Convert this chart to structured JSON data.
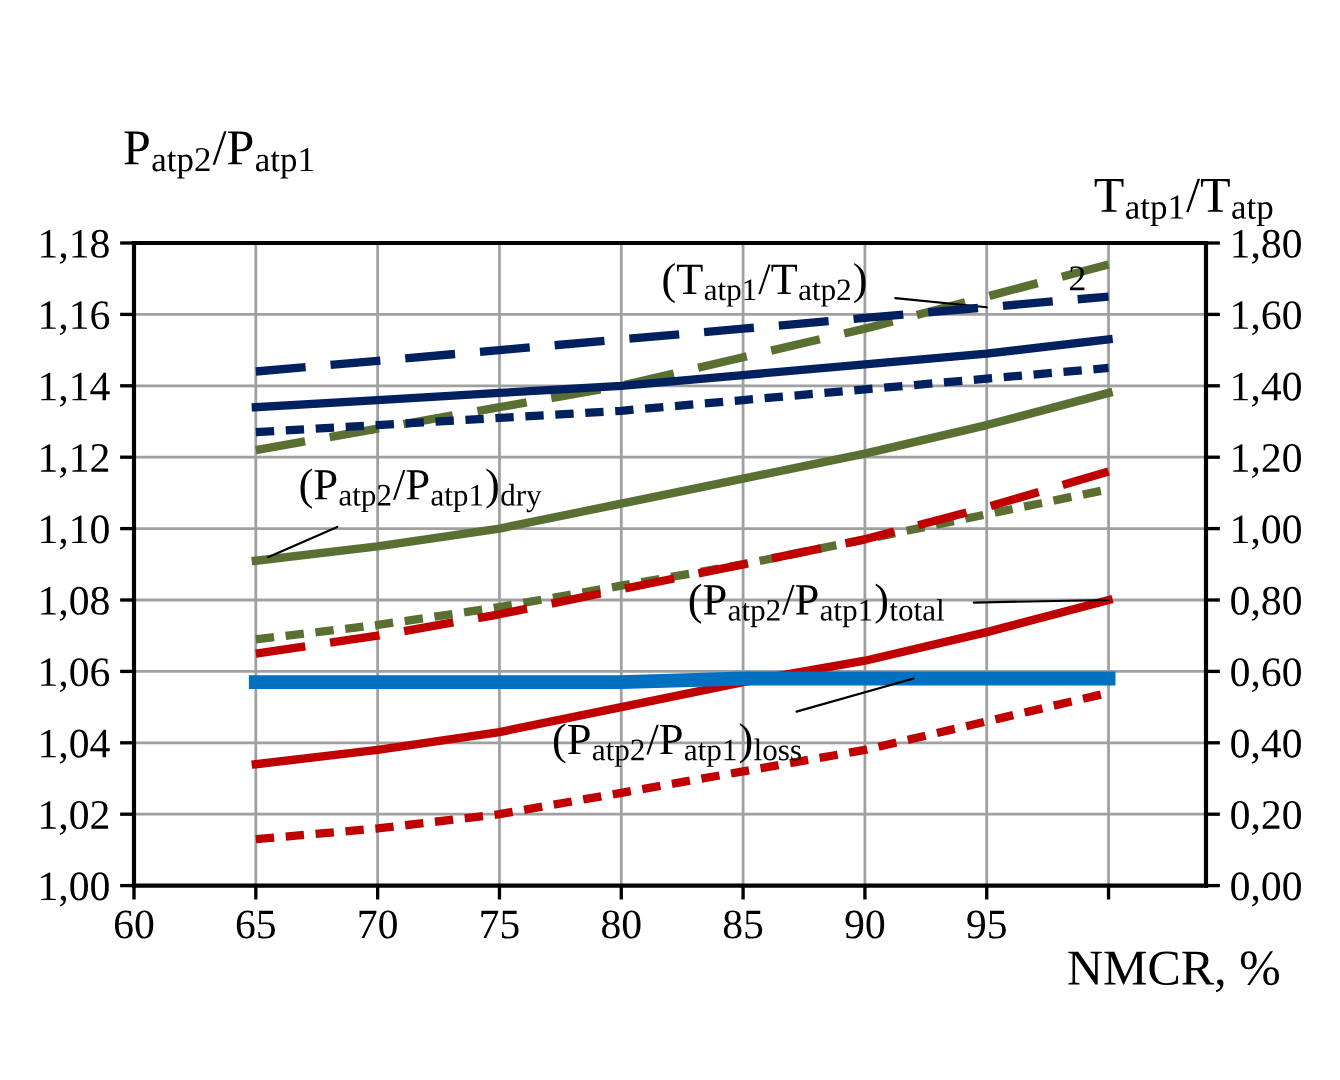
{
  "chart_data": {
    "type": "line",
    "xlabel": "NMCR, %",
    "ylabel": "P$_{atp2}$/P$_{atp1}$",
    "y2label": "T$_{atp1}$/T$_{atp}$",
    "x": [
      65,
      70,
      75,
      80,
      85,
      90,
      95,
      100
    ],
    "series": [
      {
        "color": "#002060",
        "line_style": "dashed",
        "axis": "y2",
        "values": [
          1.44,
          1.47,
          1.5,
          1.53,
          1.56,
          1.59,
          1.62,
          1.65
        ]
      },
      {
        "color": "#002060",
        "line_style": "solid",
        "axis": "y2",
        "values": [
          1.34,
          1.36,
          1.38,
          1.4,
          1.43,
          1.46,
          1.49,
          1.53
        ]
      },
      {
        "color": "#002060",
        "line_style": "dotted",
        "axis": "y2",
        "values": [
          1.27,
          1.29,
          1.31,
          1.33,
          1.36,
          1.39,
          1.42,
          1.45
        ]
      },
      {
        "color": "#5a7032",
        "line_style": "dashed",
        "values": [
          1.122,
          1.128,
          1.134,
          1.14,
          1.148,
          1.156,
          1.165,
          1.174
        ]
      },
      {
        "color": "#5a7032",
        "line_style": "solid",
        "values": [
          1.091,
          1.095,
          1.1,
          1.107,
          1.114,
          1.121,
          1.129,
          1.138
        ]
      },
      {
        "color": "#5a7032",
        "line_style": "dotted",
        "values": [
          1.069,
          1.073,
          1.078,
          1.084,
          1.09,
          1.097,
          1.104,
          1.111
        ]
      },
      {
        "color": "#c00000",
        "line_style": "dashed",
        "values": [
          1.065,
          1.07,
          1.076,
          1.083,
          1.09,
          1.097,
          1.106,
          1.116
        ]
      },
      {
        "color": "#c00000",
        "line_style": "solid",
        "values": [
          1.034,
          1.038,
          1.043,
          1.05,
          1.057,
          1.063,
          1.071,
          1.08
        ]
      },
      {
        "color": "#c00000",
        "line_style": "dotted",
        "values": [
          1.013,
          1.016,
          1.02,
          1.026,
          1.032,
          1.038,
          1.046,
          1.054
        ]
      },
      {
        "color": "#0070c0",
        "line_style": "solid",
        "values": [
          1.057,
          1.057,
          1.057,
          1.057,
          1.058,
          1.058,
          1.058,
          1.058
        ]
      }
    ],
    "annotations": [
      {
        "text": "(T$_{atp1}$/T$_{atp2}$)",
        "x": 95,
        "y": 1.162
      },
      "2",
      {
        "text": "(P$_{atp2}$/P$_{atp1}$)$_{dry}$",
        "x": 65.5,
        "y": 1.092
      },
      {
        "text": "(P$_{atp2}$/P$_{atp1}$)$_{total}$",
        "x": 100,
        "y": 1.08
      },
      {
        "text": "(P$_{atp2}$/P$_{atp1}$)$_{loss}$",
        "x": 92,
        "y": 1.058
      }
    ],
    "xlim": [
      60,
      104
    ],
    "xticks": [
      60,
      65,
      70,
      75,
      80,
      85,
      90,
      95,
      {
        "value": 100,
        "label": null
      }
    ],
    "ylim": [
      1.0,
      1.18
    ],
    "yticks": [
      {
        "value": 1.0,
        "label": "1,00"
      },
      {
        "value": 1.02,
        "label": "1,02"
      },
      {
        "value": 1.04,
        "label": "1,04"
      },
      {
        "value": 1.06,
        "label": "1,06"
      },
      {
        "value": 1.08,
        "label": "1,08"
      },
      {
        "value": 1.1,
        "label": "1,10"
      },
      {
        "value": 1.12,
        "label": "1,12"
      },
      {
        "value": 1.14,
        "label": "1,14"
      },
      {
        "value": 1.16,
        "label": "1,16"
      },
      {
        "value": 1.18,
        "label": "1,18"
      }
    ],
    "y2lim": [
      0.0,
      1.8
    ],
    "y2ticks": [
      {
        "value": 0.0,
        "label": "0,00"
      },
      {
        "value": 0.2,
        "label": "0,20"
      },
      {
        "value": 0.4,
        "label": "0,40"
      },
      {
        "value": 0.6,
        "label": "0,60"
      },
      {
        "value": 0.8,
        "label": "0,80"
      },
      {
        "value": 1.0,
        "label": "1,00"
      },
      {
        "value": 1.2,
        "label": "1,20"
      },
      {
        "value": 1.4,
        "label": "1,40"
      },
      {
        "value": 1.6,
        "label": "1,60"
      },
      {
        "value": 1.8,
        "label": "1,80"
      }
    ],
    "grid": true
  }
}
